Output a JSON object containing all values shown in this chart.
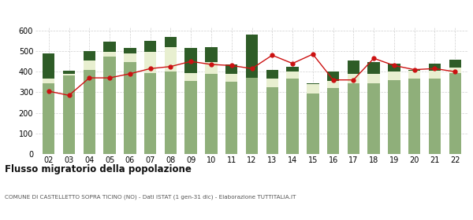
{
  "years": [
    "02",
    "03",
    "04",
    "05",
    "06",
    "07",
    "08",
    "09",
    "10",
    "11",
    "12",
    "13",
    "14",
    "15",
    "16",
    "17",
    "18",
    "19",
    "20",
    "21",
    "22"
  ],
  "iscritti_altri_comuni": [
    345,
    380,
    410,
    475,
    445,
    395,
    400,
    355,
    390,
    350,
    370,
    325,
    365,
    295,
    320,
    345,
    345,
    360,
    365,
    365,
    395
  ],
  "iscritti_estero": [
    20,
    10,
    45,
    20,
    45,
    100,
    120,
    40,
    55,
    40,
    0,
    40,
    35,
    45,
    35,
    45,
    45,
    40,
    40,
    40,
    25
  ],
  "iscritti_altri": [
    125,
    15,
    45,
    50,
    25,
    55,
    50,
    120,
    75,
    45,
    210,
    45,
    25,
    5,
    45,
    65,
    55,
    40,
    5,
    35,
    40
  ],
  "cancellati": [
    305,
    285,
    370,
    370,
    390,
    415,
    425,
    450,
    435,
    430,
    415,
    480,
    440,
    485,
    360,
    360,
    465,
    430,
    410,
    415,
    400
  ],
  "color_altri_comuni": "#8faf7a",
  "color_estero": "#e8efd0",
  "color_altri": "#2e5c27",
  "color_cancellati": "#cc1111",
  "title": "Flusso migratorio della popolazione",
  "subtitle": "COMUNE DI CASTELLETTO SOPRA TICINO (NO) - Dati ISTAT (1 gen-31 dic) - Elaborazione TUTTITALIA.IT",
  "ylim": [
    0,
    620
  ],
  "yticks": [
    0,
    100,
    200,
    300,
    400,
    500,
    600
  ],
  "background_color": "#ffffff",
  "grid_color": "#d0d0d0"
}
